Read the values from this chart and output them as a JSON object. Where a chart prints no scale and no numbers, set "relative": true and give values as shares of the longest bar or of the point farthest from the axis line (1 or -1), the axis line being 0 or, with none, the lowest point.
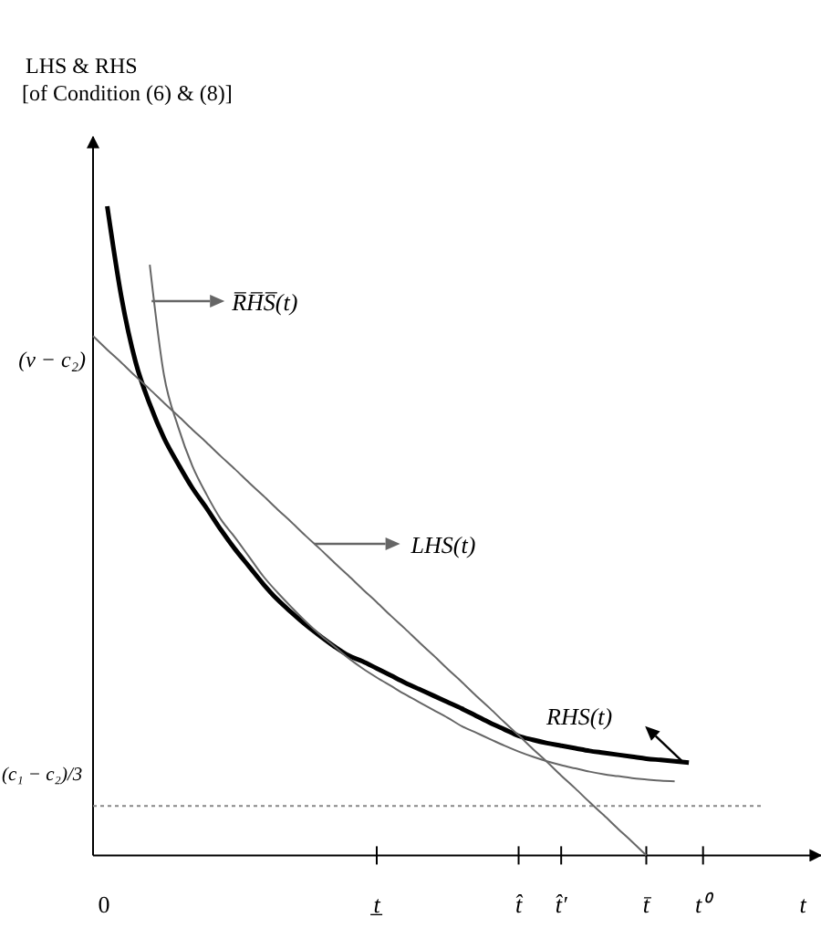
{
  "chart_data": {
    "type": "line",
    "relative": true,
    "ylabel": "LHS & RHS\n[of Condition (6) & (8)]",
    "xlabel": "t",
    "marker": "none",
    "legend": "top",
    "categories": [
      "0",
      null,
      null,
      null,
      null,
      null,
      null,
      null,
      null,
      null,
      null,
      null,
      null,
      null,
      null,
      null,
      null,
      null,
      null,
      null,
      "t̲",
      null,
      null,
      null,
      null,
      null,
      null,
      null,
      null,
      null,
      "t̂",
      null,
      null,
      "t̂′",
      null,
      null,
      null,
      null,
      null,
      "t̄",
      null,
      null,
      null,
      "t⁰",
      null,
      null,
      null,
      null,
      null,
      null
    ],
    "series": [
      {
        "name": "RHS(t)",
        "color": "#000000",
        "values": [
          null,
          1,
          0.86,
          0.76,
          0.695,
          0.643,
          0.603,
          0.566,
          0.535,
          0.502,
          0.472,
          0.445,
          0.418,
          0.394,
          0.374,
          0.355,
          0.338,
          0.322,
          0.308,
          0.299,
          0.288,
          0.277,
          0.266,
          0.256,
          0.246,
          0.236,
          0.226,
          0.215,
          0.204,
          0.194,
          0.184,
          0.178,
          0.173,
          0.169,
          0.165,
          0.161,
          0.158,
          0.155,
          0.152,
          0.149,
          0.147,
          0.145,
          0.143,
          null,
          null,
          null,
          null,
          null,
          null,
          null
        ]
      },
      {
        "name": "R̅H̅S̅(t)",
        "color": "#666666",
        "values": [
          null,
          null,
          null,
          null,
          0.91,
          0.74,
          0.66,
          0.6,
          0.556,
          0.518,
          0.49,
          0.46,
          0.43,
          0.405,
          0.382,
          0.36,
          0.34,
          0.322,
          0.304,
          0.288,
          0.274,
          0.261,
          0.248,
          0.236,
          0.224,
          0.212,
          0.199,
          0.189,
          0.179,
          0.169,
          0.16,
          0.152,
          0.145,
          0.139,
          0.134,
          0.129,
          0.125,
          0.122,
          0.119,
          0.117,
          0.115,
          0.114,
          null,
          null,
          null,
          null,
          null,
          null,
          null,
          null
        ]
      },
      {
        "name": "LHS(t)",
        "color": "#666666",
        "values": [
          0.8,
          0.779,
          0.759,
          0.738,
          0.718,
          0.697,
          0.677,
          0.656,
          0.636,
          0.615,
          0.595,
          0.574,
          0.554,
          0.533,
          0.513,
          0.492,
          0.472,
          0.451,
          0.431,
          0.41,
          0.39,
          0.369,
          0.349,
          0.328,
          0.308,
          0.287,
          0.267,
          0.246,
          0.226,
          0.205,
          0.185,
          0.164,
          0.144,
          0.123,
          0.103,
          0.082,
          0.062,
          0.041,
          0.021,
          0,
          null,
          null,
          null,
          null,
          null,
          null,
          null,
          null,
          null,
          null
        ]
      }
    ],
    "ref_lines": [
      {
        "axis": "y",
        "value": 0.076,
        "label": "(c₁ − c₂)/3",
        "line_style": "dotted",
        "color": "#888888"
      }
    ],
    "annotations": [
      "(v − c₂)"
    ]
  }
}
